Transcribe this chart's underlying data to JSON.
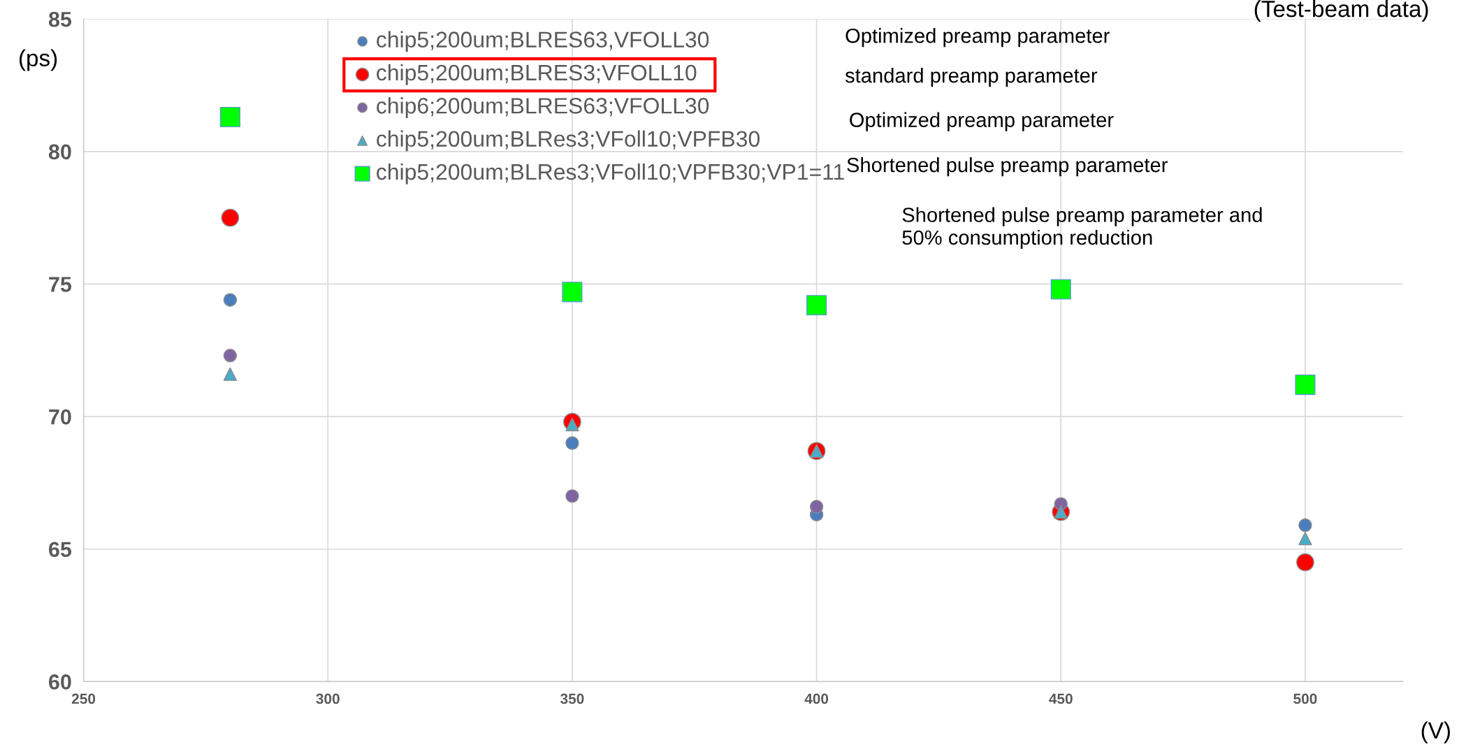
{
  "chart_data": {
    "type": "scatter",
    "title": "(Test-beam data)",
    "xlabel": "(V)",
    "ylabel": "(ps)",
    "x": [
      280,
      350,
      400,
      450,
      500
    ],
    "series": [
      {
        "name": "chip5;200um;BLRES63,VFOLL30",
        "color": "#4a7ebf",
        "marker": "circle",
        "values": [
          74.4,
          69.0,
          66.3,
          null,
          65.9
        ]
      },
      {
        "name": "chip5;200um;BLRES3;VFOLL10",
        "color": "#ff0000",
        "marker": "circle",
        "values": [
          77.5,
          69.8,
          68.7,
          66.4,
          64.5
        ]
      },
      {
        "name": "chip6;200um;BLRES63;VFOLL30",
        "color": "#8064a2",
        "marker": "circle",
        "values": [
          72.3,
          67.0,
          66.6,
          66.7,
          null
        ]
      },
      {
        "name": "chip5;200um;BLRes3;VFoll10;VPFB30",
        "color": "#4bacc6",
        "marker": "triangle",
        "values": [
          71.6,
          69.7,
          68.7,
          66.4,
          65.4
        ]
      },
      {
        "name": "chip5;200um;BLRes3;VFoll10;VPFB30;VP1=11",
        "color": "#00ff00",
        "marker": "square",
        "values": [
          81.3,
          74.7,
          74.2,
          74.8,
          71.2
        ]
      }
    ],
    "annotations": [
      "Optimized preamp parameter",
      "standard preamp parameter",
      "Optimized preamp parameter",
      "Shortened pulse preamp parameter",
      "Shortened pulse preamp parameter and\n50% consumption reduction"
    ],
    "xlim": [
      250,
      520
    ],
    "xticks": [
      250,
      300,
      350,
      400,
      450,
      500
    ],
    "ylim": [
      60,
      85
    ],
    "yticks": [
      60,
      65,
      70,
      75,
      80,
      85
    ],
    "grid": true,
    "legend": "top"
  }
}
